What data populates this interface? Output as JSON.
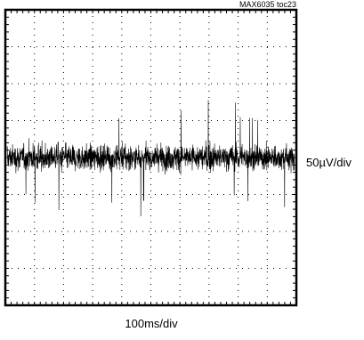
{
  "chart_data": {
    "type": "line",
    "title": "",
    "figure_tag": "MAX6035 toc23",
    "x_scale": "100ms/div",
    "y_scale": "50µV/div",
    "divisions": {
      "horizontal": 10,
      "vertical": 8
    },
    "grid": "dotted",
    "series": [
      {
        "signal": "noise",
        "center_div": 0,
        "typical_peak_div": 0.95,
        "max_peak_div": 1.6,
        "samples": 1700
      }
    ],
    "colors": {
      "trace": "#000000",
      "frame": "#000000",
      "grid": "#000000",
      "background": "#ffffff"
    }
  }
}
